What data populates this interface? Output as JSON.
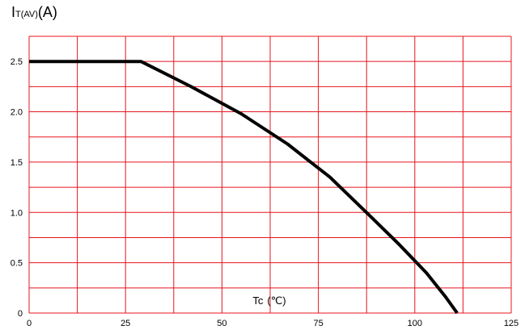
{
  "chart_data": {
    "type": "line",
    "ylabel": {
      "main": "I",
      "sub": "T(AV)",
      "unit": "(A)"
    },
    "xlabel": {
      "main": "Tc",
      "unit": "(℃)"
    },
    "xlim": [
      0,
      125
    ],
    "ylim": [
      0,
      2.75
    ],
    "x_ticks": [
      0,
      25,
      50,
      75,
      100,
      125
    ],
    "y_ticks": [
      0,
      0.5,
      1.0,
      1.5,
      2.0,
      2.5
    ],
    "y_tick_labels": [
      "0",
      "0.5",
      "1.0",
      "1.5",
      "2.0",
      "2.5"
    ],
    "x_grid_step": 12.5,
    "y_grid_step": 0.25,
    "grid": true,
    "colors": {
      "grid": "#e8141e",
      "line": "#000000"
    },
    "series": [
      {
        "x": [
          0,
          29,
          42,
          55,
          67,
          78,
          88,
          96,
          103,
          108,
          111
        ],
        "y": [
          2.5,
          2.5,
          2.25,
          1.98,
          1.68,
          1.35,
          0.98,
          0.68,
          0.4,
          0.16,
          0
        ]
      }
    ]
  }
}
